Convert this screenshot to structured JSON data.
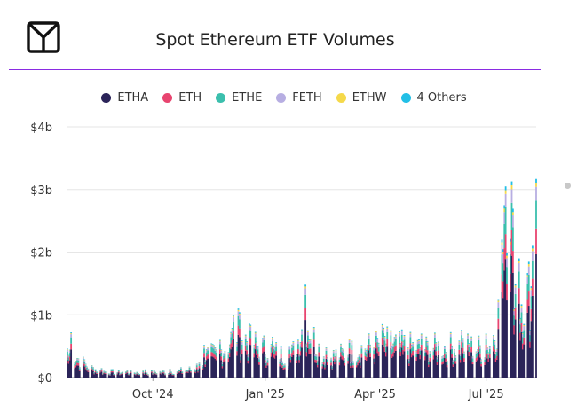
{
  "header": {
    "title": "Spot Ethereum ETF Volumes",
    "logo_icon": "cube-logo-icon",
    "accent_color": "#8a2be2"
  },
  "legend": [
    {
      "label": "ETHA",
      "color": "#2b2459"
    },
    {
      "label": "ETH",
      "color": "#e8446f"
    },
    {
      "label": "ETHE",
      "color": "#3bbfad"
    },
    {
      "label": "FETH",
      "color": "#b7aee2"
    },
    {
      "label": "ETHW",
      "color": "#f5d94a"
    },
    {
      "label": "4 Others",
      "color": "#22bfe6"
    }
  ],
  "chart_data": {
    "type": "bar",
    "stacked": true,
    "title": "Spot Ethereum ETF Volumes",
    "xlabel": "",
    "ylabel": "",
    "x_start": "2024-07-23",
    "x_end": "2025-08-11",
    "x_ticks": [
      {
        "label": "Oct '24",
        "date": "2024-10-01"
      },
      {
        "label": "Jan '25",
        "date": "2025-01-01"
      },
      {
        "label": "Apr '25",
        "date": "2025-04-01"
      },
      {
        "label": "Jul '25",
        "date": "2025-07-01"
      }
    ],
    "y_ticks": [
      {
        "label": "$0",
        "value": 0
      },
      {
        "label": "$1b",
        "value": 1000000000
      },
      {
        "label": "$2b",
        "value": 2000000000
      },
      {
        "label": "$3b",
        "value": 3000000000
      },
      {
        "label": "$4b",
        "value": 4000000000
      }
    ],
    "ylim": [
      0,
      4000000000
    ],
    "grid": true,
    "legend_position": "top",
    "series_names": [
      "ETHA",
      "ETH",
      "ETHE",
      "FETH",
      "ETHW",
      "4 Others"
    ],
    "daily_totals_usd": [
      {
        "date": "2024-07-23",
        "total": 460000000
      },
      {
        "date": "2024-07-26",
        "total": 720000000
      },
      {
        "date": "2024-08-05",
        "total": 330000000
      },
      {
        "date": "2024-08-20",
        "total": 150000000
      },
      {
        "date": "2024-09-10",
        "total": 120000000
      },
      {
        "date": "2024-09-25",
        "total": 130000000
      },
      {
        "date": "2024-10-15",
        "total": 140000000
      },
      {
        "date": "2024-11-06",
        "total": 220000000
      },
      {
        "date": "2024-11-12",
        "total": 520000000
      },
      {
        "date": "2024-11-25",
        "total": 600000000
      },
      {
        "date": "2024-12-06",
        "total": 1000000000
      },
      {
        "date": "2024-12-10",
        "total": 1100000000
      },
      {
        "date": "2024-12-20",
        "total": 840000000
      },
      {
        "date": "2025-01-07",
        "total": 650000000
      },
      {
        "date": "2025-01-21",
        "total": 500000000
      },
      {
        "date": "2025-02-03",
        "total": 1480000000
      },
      {
        "date": "2025-02-20",
        "total": 480000000
      },
      {
        "date": "2025-03-11",
        "total": 620000000
      },
      {
        "date": "2025-04-07",
        "total": 850000000
      },
      {
        "date": "2025-05-09",
        "total": 700000000
      },
      {
        "date": "2025-06-11",
        "total": 760000000
      },
      {
        "date": "2025-07-01",
        "total": 700000000
      },
      {
        "date": "2025-07-11",
        "total": 1250000000
      },
      {
        "date": "2025-07-14",
        "total": 2200000000
      },
      {
        "date": "2025-07-16",
        "total": 2750000000
      },
      {
        "date": "2025-07-17",
        "total": 3050000000
      },
      {
        "date": "2025-07-22",
        "total": 3130000000
      },
      {
        "date": "2025-07-28",
        "total": 1900000000
      },
      {
        "date": "2025-08-08",
        "total": 2100000000
      },
      {
        "date": "2025-08-11",
        "total": 3170000000
      }
    ]
  }
}
